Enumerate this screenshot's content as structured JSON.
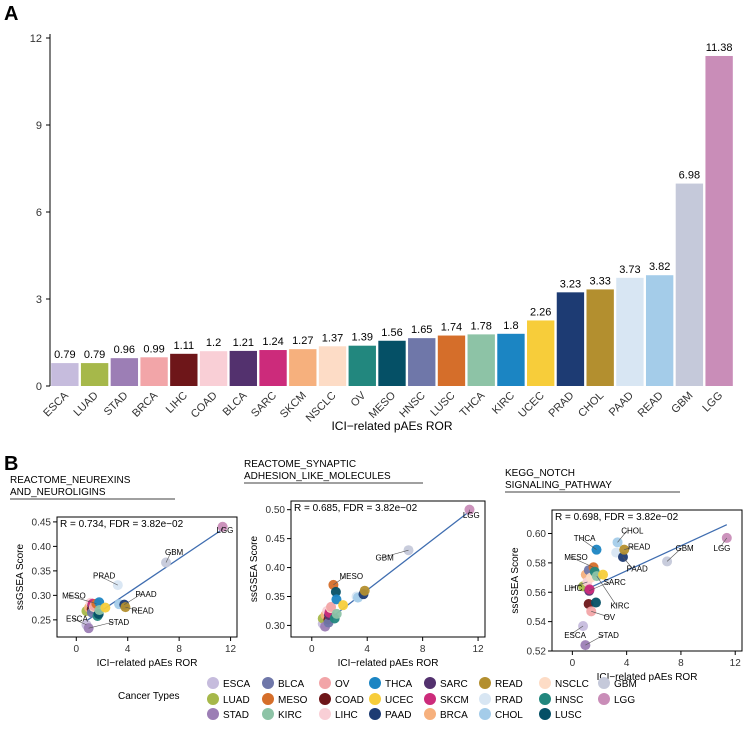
{
  "panel_labels": {
    "a": "A",
    "b": "B"
  },
  "colors": {
    "ESCA": "#C6BCDD",
    "LUAD": "#A6B84A",
    "STAD": "#9C7EB5",
    "BLCA": "#6F77A9",
    "MESO": "#D56E2A",
    "KIRC": "#8DC3A6",
    "OV": "#F2A5A8",
    "COAD": "#6E1619",
    "LIHC": "#F9CFD6",
    "THCA": "#1B85C3",
    "UCEC": "#F7CD3A",
    "PAAD": "#1D3B73",
    "SARC": "#53316E",
    "SKCM": "#CC2B7B",
    "BRCA": "#F6B07D",
    "READ": "#B38F2F",
    "PRAD": "#D8E6F3",
    "CHOL": "#A4CCE9",
    "NSCLC": "#FDDCC6",
    "HNSC": "#22877E",
    "LUSC": "#055066",
    "GBM": "#C5C9DA",
    "LGG": "#C98DB8"
  },
  "chart_data": [
    {
      "type": "bar",
      "title": "",
      "xlabel": "ICI−related pAEs ROR",
      "ylabel": "",
      "ylim": [
        0,
        12
      ],
      "yticks": [
        0,
        3,
        6,
        9,
        12
      ],
      "categories": [
        "ESCA",
        "LUAD",
        "STAD",
        "BRCA",
        "LIHC",
        "COAD",
        "BLCA",
        "SARC",
        "SKCM",
        "NSCLC",
        "OV",
        "MESO",
        "HNSC",
        "LUSC",
        "THCA",
        "KIRC",
        "UCEC",
        "PRAD",
        "CHOL",
        "PAAD",
        "READ",
        "GBM",
        "LGG"
      ],
      "values": [
        0.79,
        0.79,
        0.96,
        0.99,
        1.11,
        1.2,
        1.21,
        1.24,
        1.27,
        1.37,
        1.39,
        1.56,
        1.65,
        1.74,
        1.78,
        1.8,
        2.26,
        3.23,
        3.33,
        3.73,
        3.82,
        6.98,
        11.38
      ],
      "value_labels": [
        "0.79",
        "0.79",
        "0.96",
        "0.99",
        "1.11",
        "1.2",
        "1.21",
        "1.24",
        "1.27",
        "1.37",
        "1.39",
        "1.56",
        "1.65",
        "1.74",
        "1.78",
        "1.8",
        "2.26",
        "3.23",
        "3.33",
        "3.73",
        "3.82",
        "6.98",
        "11.38"
      ],
      "bar_colors": [
        "#C6BCDD",
        "#A6B84A",
        "#9C7EB5",
        "#F2A5A8",
        "#6E1619",
        "#F9CFD6",
        "#53316E",
        "#CC2B7B",
        "#F6B07D",
        "#FDDCC6",
        "#22877E",
        "#055066",
        "#6F77A9",
        "#D56E2A",
        "#8DC3A6",
        "#1B85C3",
        "#F7CD3A",
        "#1D3B73",
        "#B38F2F",
        "#D8E6F3",
        "#A4CCE9",
        "#C5C9DA",
        "#C98DB8"
      ]
    },
    {
      "type": "scatter",
      "title": [
        "REACTOME_NEUREXINS",
        "AND_NEUROLIGINS"
      ],
      "stat": "R = 0.734, FDR = 3.82e−02",
      "xlabel": "ICI−related pAEs ROR",
      "ylabel": "ssGSEA Score",
      "xlim": [
        -1.5,
        12.5
      ],
      "ylim": [
        0.215,
        0.46
      ],
      "xticks": [
        0,
        4,
        8,
        12
      ],
      "yticks": [
        0.25,
        0.3,
        0.35,
        0.4,
        0.45
      ],
      "fit": [
        [
          0.79,
          0.248
        ],
        [
          11.38,
          0.435
        ]
      ],
      "points": [
        {
          "name": "ESCA",
          "x": 0.79,
          "y": 0.24
        },
        {
          "name": "LUAD",
          "x": 0.79,
          "y": 0.268
        },
        {
          "name": "STAD",
          "x": 0.96,
          "y": 0.233
        },
        {
          "name": "BRCA",
          "x": 0.99,
          "y": 0.275
        },
        {
          "name": "LIHC",
          "x": 1.11,
          "y": 0.285
        },
        {
          "name": "COAD",
          "x": 1.2,
          "y": 0.272
        },
        {
          "name": "BLCA",
          "x": 1.21,
          "y": 0.265
        },
        {
          "name": "SARC",
          "x": 1.24,
          "y": 0.28
        },
        {
          "name": "SKCM",
          "x": 1.27,
          "y": 0.283
        },
        {
          "name": "NSCLC",
          "x": 1.37,
          "y": 0.276
        },
        {
          "name": "OV",
          "x": 1.39,
          "y": 0.278
        },
        {
          "name": "MESO",
          "x": 1.56,
          "y": 0.283
        },
        {
          "name": "HNSC",
          "x": 1.65,
          "y": 0.258
        },
        {
          "name": "LUSC",
          "x": 1.74,
          "y": 0.262
        },
        {
          "name": "THCA",
          "x": 1.78,
          "y": 0.286
        },
        {
          "name": "KIRC",
          "x": 1.8,
          "y": 0.27
        },
        {
          "name": "UCEC",
          "x": 2.26,
          "y": 0.275
        },
        {
          "name": "PRAD",
          "x": 3.23,
          "y": 0.321
        },
        {
          "name": "CHOL",
          "x": 3.33,
          "y": 0.282
        },
        {
          "name": "PAAD",
          "x": 3.73,
          "y": 0.281
        },
        {
          "name": "READ",
          "x": 3.82,
          "y": 0.276
        },
        {
          "name": "GBM",
          "x": 6.98,
          "y": 0.367
        },
        {
          "name": "LGG",
          "x": 11.38,
          "y": 0.44
        }
      ],
      "labels": [
        {
          "name": "LGG",
          "text": "LGG",
          "tx": 10.9,
          "ty": 0.427
        },
        {
          "name": "GBM",
          "text": "GBM",
          "tx": 6.9,
          "ty": 0.382
        },
        {
          "name": "PRAD",
          "text": "PRAD",
          "tx": 1.3,
          "ty": 0.334
        },
        {
          "name": "PAAD",
          "text": "PAAD",
          "tx": 4.6,
          "ty": 0.297
        },
        {
          "name": "MESO",
          "text": "MESO",
          "tx": -1.1,
          "ty": 0.294
        },
        {
          "name": "READ",
          "text": "READ",
          "tx": 4.3,
          "ty": 0.263
        },
        {
          "name": "ESCA",
          "text": "ESCA",
          "tx": -0.8,
          "ty": 0.247
        },
        {
          "name": "STAD",
          "text": "STAD",
          "tx": 2.5,
          "ty": 0.24
        }
      ]
    },
    {
      "type": "scatter",
      "title": [
        "REACTOME_SYNAPTIC",
        "ADHESION_LIKE_MOLECULES"
      ],
      "stat": "R = 0.685, FDR = 3.82e−02",
      "xlabel": "ICI−related pAEs ROR",
      "ylabel": "ssGSEA Score",
      "xlim": [
        -1.5,
        12.5
      ],
      "ylim": [
        0.28,
        0.515
      ],
      "xticks": [
        0,
        4,
        8,
        12
      ],
      "yticks": [
        0.3,
        0.35,
        0.4,
        0.45,
        0.5
      ],
      "fit": [
        [
          0.79,
          0.302
        ],
        [
          11.38,
          0.497
        ]
      ],
      "points": [
        {
          "name": "ESCA",
          "x": 0.79,
          "y": 0.303
        },
        {
          "name": "LUAD",
          "x": 0.79,
          "y": 0.312
        },
        {
          "name": "STAD",
          "x": 0.96,
          "y": 0.298
        },
        {
          "name": "BRCA",
          "x": 0.99,
          "y": 0.318
        },
        {
          "name": "LIHC",
          "x": 1.11,
          "y": 0.325
        },
        {
          "name": "COAD",
          "x": 1.2,
          "y": 0.31
        },
        {
          "name": "BLCA",
          "x": 1.21,
          "y": 0.305
        },
        {
          "name": "SARC",
          "x": 1.24,
          "y": 0.318
        },
        {
          "name": "SKCM",
          "x": 1.27,
          "y": 0.322
        },
        {
          "name": "NSCLC",
          "x": 1.37,
          "y": 0.33
        },
        {
          "name": "OV",
          "x": 1.39,
          "y": 0.332
        },
        {
          "name": "MESO",
          "x": 1.56,
          "y": 0.37
        },
        {
          "name": "HNSC",
          "x": 1.65,
          "y": 0.312
        },
        {
          "name": "LUSC",
          "x": 1.74,
          "y": 0.358
        },
        {
          "name": "THCA",
          "x": 1.78,
          "y": 0.345
        },
        {
          "name": "KIRC",
          "x": 1.8,
          "y": 0.32
        },
        {
          "name": "UCEC",
          "x": 2.26,
          "y": 0.335
        },
        {
          "name": "PRAD",
          "x": 3.23,
          "y": 0.35
        },
        {
          "name": "CHOL",
          "x": 3.33,
          "y": 0.348
        },
        {
          "name": "PAAD",
          "x": 3.73,
          "y": 0.354
        },
        {
          "name": "READ",
          "x": 3.82,
          "y": 0.36
        },
        {
          "name": "GBM",
          "x": 6.98,
          "y": 0.43
        },
        {
          "name": "LGG",
          "x": 11.38,
          "y": 0.5
        }
      ],
      "labels": [
        {
          "name": "LGG",
          "text": "LGG",
          "tx": 10.9,
          "ty": 0.486
        },
        {
          "name": "GBM",
          "text": "GBM",
          "tx": 4.6,
          "ty": 0.412
        },
        {
          "name": "MESO",
          "text": "MESO",
          "tx": 2.0,
          "ty": 0.38
        }
      ]
    },
    {
      "type": "scatter",
      "title": [
        "KEGG_NOTCH",
        "SIGNALING_PATHWAY"
      ],
      "stat": "R = 0.698, FDR = 3.82e−02",
      "xlabel": "ICI−related pAEs ROR",
      "ylabel": "ssGSEA Score",
      "xlim": [
        -1.5,
        12.5
      ],
      "ylim": [
        0.52,
        0.616
      ],
      "xticks": [
        0,
        4,
        8,
        12
      ],
      "yticks": [
        0.52,
        0.54,
        0.56,
        0.58,
        0.6
      ],
      "fit": [
        [
          0.79,
          0.561
        ],
        [
          11.38,
          0.606
        ]
      ],
      "points": [
        {
          "name": "ESCA",
          "x": 0.79,
          "y": 0.537
        },
        {
          "name": "LUAD",
          "x": 0.79,
          "y": 0.564
        },
        {
          "name": "STAD",
          "x": 0.96,
          "y": 0.524
        },
        {
          "name": "BRCA",
          "x": 0.99,
          "y": 0.572
        },
        {
          "name": "LIHC",
          "x": 1.11,
          "y": 0.567
        },
        {
          "name": "COAD",
          "x": 1.2,
          "y": 0.552
        },
        {
          "name": "BLCA",
          "x": 1.21,
          "y": 0.575
        },
        {
          "name": "SARC",
          "x": 1.24,
          "y": 0.561
        },
        {
          "name": "SKCM",
          "x": 1.27,
          "y": 0.562
        },
        {
          "name": "NSCLC",
          "x": 1.37,
          "y": 0.57
        },
        {
          "name": "OV",
          "x": 1.39,
          "y": 0.547
        },
        {
          "name": "MESO",
          "x": 1.56,
          "y": 0.577
        },
        {
          "name": "HNSC",
          "x": 1.65,
          "y": 0.574
        },
        {
          "name": "LUSC",
          "x": 1.74,
          "y": 0.553
        },
        {
          "name": "THCA",
          "x": 1.78,
          "y": 0.589
        },
        {
          "name": "KIRC",
          "x": 1.8,
          "y": 0.571
        },
        {
          "name": "UCEC",
          "x": 2.26,
          "y": 0.572
        },
        {
          "name": "PRAD",
          "x": 3.23,
          "y": 0.587
        },
        {
          "name": "CHOL",
          "x": 3.33,
          "y": 0.594
        },
        {
          "name": "PAAD",
          "x": 3.73,
          "y": 0.584
        },
        {
          "name": "READ",
          "x": 3.82,
          "y": 0.589
        },
        {
          "name": "GBM",
          "x": 6.98,
          "y": 0.581
        },
        {
          "name": "LGG",
          "x": 11.38,
          "y": 0.597
        }
      ],
      "labels": [
        {
          "name": "CHOL",
          "text": "CHOL",
          "tx": 3.6,
          "ty": 0.6
        },
        {
          "name": "THCA",
          "text": "THCA",
          "tx": 0.1,
          "ty": 0.595
        },
        {
          "name": "READ",
          "text": "READ",
          "tx": 4.1,
          "ty": 0.589
        },
        {
          "name": "GBM",
          "text": "GBM",
          "tx": 7.6,
          "ty": 0.588
        },
        {
          "name": "LGG",
          "text": "LGG",
          "tx": 10.4,
          "ty": 0.588
        },
        {
          "name": "MESO",
          "text": "MESO",
          "tx": -0.6,
          "ty": 0.582
        },
        {
          "name": "PAAD",
          "text": "PAAD",
          "tx": 4.0,
          "ty": 0.574
        },
        {
          "name": "SARC",
          "text": "SARC",
          "tx": 2.3,
          "ty": 0.565
        },
        {
          "name": "LIHC",
          "text": "LIHC",
          "tx": -0.6,
          "ty": 0.561
        },
        {
          "name": "KIRC",
          "text": "KIRC",
          "tx": 2.8,
          "ty": 0.549
        },
        {
          "name": "OV",
          "text": "OV",
          "tx": 2.3,
          "ty": 0.541
        },
        {
          "name": "ESCA",
          "text": "ESCA",
          "tx": -0.6,
          "ty": 0.529
        },
        {
          "name": "STAD",
          "text": "STAD",
          "tx": 1.9,
          "ty": 0.529
        }
      ]
    }
  ],
  "legend": {
    "title": "Cancer Types",
    "columns": [
      [
        "ESCA",
        "LUAD",
        "STAD"
      ],
      [
        "BLCA",
        "MESO",
        "KIRC"
      ],
      [
        "OV",
        "COAD",
        "LIHC"
      ],
      [
        "THCA",
        "UCEC",
        "PAAD"
      ],
      [
        "SARC",
        "SKCM",
        "BRCA"
      ],
      [
        "READ",
        "PRAD",
        "CHOL"
      ],
      [
        "NSCLC",
        "HNSC",
        "LUSC"
      ],
      [
        "GBM",
        "LGG"
      ]
    ]
  }
}
